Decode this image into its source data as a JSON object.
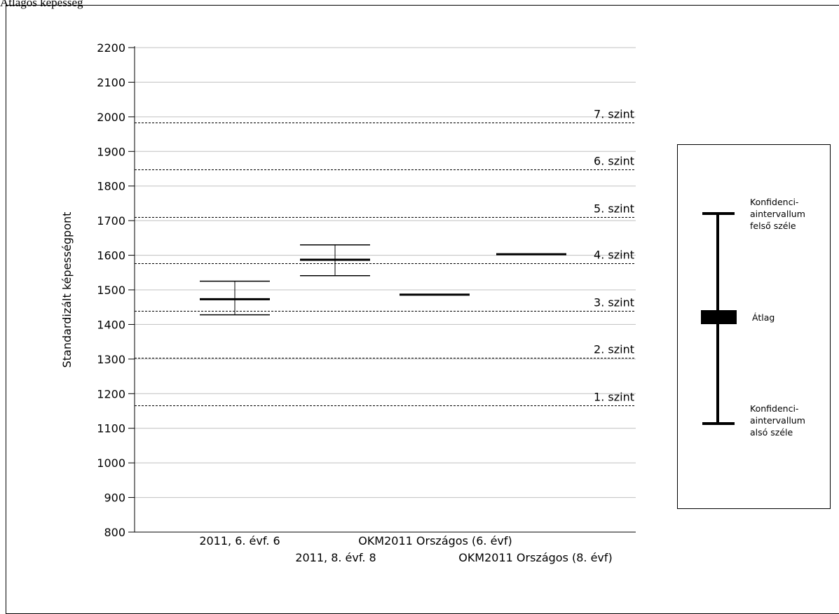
{
  "header": {
    "title": "Átlagos képesség"
  },
  "chart_data": {
    "type": "box",
    "ylabel": "Standardizált képességpont",
    "ylim": [
      800,
      2200
    ],
    "yticks": [
      800,
      900,
      1000,
      1100,
      1200,
      1300,
      1400,
      1500,
      1600,
      1700,
      1800,
      1900,
      2000,
      2100,
      2200
    ],
    "grid": true,
    "levels": [
      {
        "label": "1. szint",
        "value": 1167
      },
      {
        "label": "2. szint",
        "value": 1303
      },
      {
        "label": "3. szint",
        "value": 1439
      },
      {
        "label": "4. szint",
        "value": 1576
      },
      {
        "label": "5. szint",
        "value": 1711
      },
      {
        "label": "6. szint",
        "value": 1847
      },
      {
        "label": "7. szint",
        "value": 1983
      }
    ],
    "categories": [
      {
        "label": "2011, 6. évf. 6",
        "mean": 1473,
        "ci_low": 1428,
        "ci_high": 1525
      },
      {
        "label": "2011, 8. évf. 8",
        "mean": 1587,
        "ci_low": 1541,
        "ci_high": 1630
      },
      {
        "label": "OKM2011 Országos (6. évf)",
        "mean": 1486,
        "ci_low": null,
        "ci_high": null
      },
      {
        "label": "OKM2011 Országos (8. évf)",
        "mean": 1603,
        "ci_low": null,
        "ci_high": null
      }
    ]
  },
  "legend": {
    "upper_label": "Konfidenci-\naintervallum\nfelső széle",
    "mean_label": "Átlag",
    "lower_label": "Konfidenci-\naintervallum\nalsó széle"
  }
}
